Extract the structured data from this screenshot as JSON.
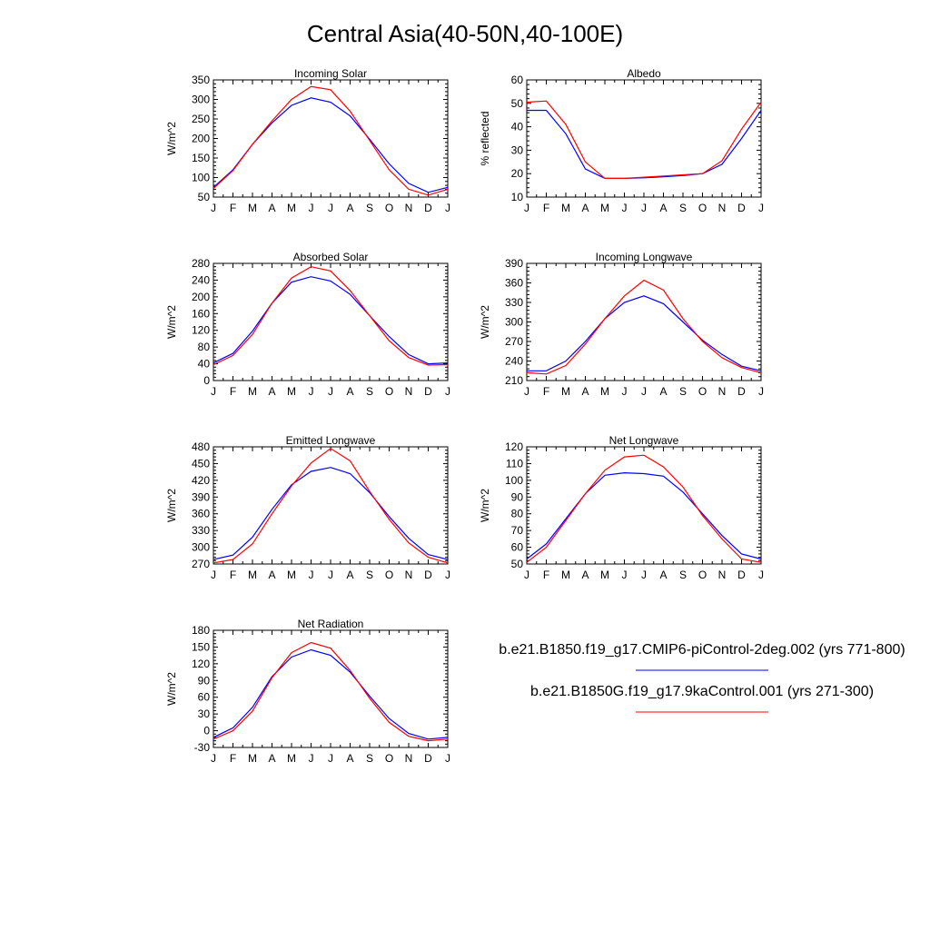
{
  "figure": {
    "title": "Central Asia(40-50N,40-100E)"
  },
  "legend": [
    {
      "label": "b.e21.B1850.f19_g17.CMIP6-piControl-2deg.002 (yrs 771-800)",
      "color": "#0000ff"
    },
    {
      "label": "b.e21.B1850G.f19_g17.9kaControl.001 (yrs 271-300)",
      "color": "#ff0000"
    }
  ],
  "chart_data": [
    {
      "type": "line",
      "title": "Incoming Solar",
      "xlabel": "",
      "ylabel": "W/m^2",
      "categories": [
        "J",
        "F",
        "M",
        "A",
        "M",
        "J",
        "J",
        "A",
        "S",
        "O",
        "N",
        "D",
        "J"
      ],
      "ylim": [
        50,
        350
      ],
      "yticks": [
        50,
        100,
        150,
        200,
        250,
        300,
        350
      ],
      "series": [
        {
          "color": "#0000ff",
          "values": [
            75,
            120,
            185,
            240,
            285,
            304,
            293,
            258,
            198,
            135,
            85,
            62,
            75
          ]
        },
        {
          "color": "#ff0000",
          "values": [
            72,
            118,
            185,
            245,
            300,
            333,
            325,
            270,
            195,
            120,
            70,
            55,
            70
          ]
        }
      ]
    },
    {
      "type": "line",
      "title": "Albedo",
      "xlabel": "",
      "ylabel": "% reflected",
      "categories": [
        "J",
        "F",
        "M",
        "A",
        "M",
        "J",
        "J",
        "A",
        "S",
        "O",
        "N",
        "D",
        "J"
      ],
      "ylim": [
        10,
        60
      ],
      "yticks": [
        10,
        20,
        30,
        40,
        50,
        60
      ],
      "series": [
        {
          "color": "#0000ff",
          "values": [
            47,
            47,
            37,
            22,
            18,
            18,
            18.2,
            18.7,
            19.2,
            20,
            24,
            35,
            47
          ]
        },
        {
          "color": "#ff0000",
          "values": [
            50.5,
            51,
            41,
            25,
            18,
            18,
            18.5,
            19,
            19.5,
            20,
            25.5,
            39,
            50.5
          ]
        }
      ]
    },
    {
      "type": "line",
      "title": "Absorbed Solar",
      "xlabel": "",
      "ylabel": "W/m^2",
      "categories": [
        "J",
        "F",
        "M",
        "A",
        "M",
        "J",
        "J",
        "A",
        "S",
        "O",
        "N",
        "D",
        "J"
      ],
      "ylim": [
        0,
        280
      ],
      "yticks": [
        0,
        40,
        80,
        120,
        160,
        200,
        240,
        280
      ],
      "series": [
        {
          "color": "#0000ff",
          "values": [
            42,
            65,
            118,
            185,
            235,
            248,
            238,
            206,
            155,
            105,
            62,
            40,
            42
          ]
        },
        {
          "color": "#ff0000",
          "values": [
            38,
            60,
            110,
            185,
            245,
            272,
            262,
            215,
            155,
            95,
            55,
            37,
            38
          ]
        }
      ]
    },
    {
      "type": "line",
      "title": "Incoming Longwave",
      "xlabel": "",
      "ylabel": "W/m^2",
      "categories": [
        "J",
        "F",
        "M",
        "A",
        "M",
        "J",
        "J",
        "A",
        "S",
        "O",
        "N",
        "D",
        "J"
      ],
      "ylim": [
        210,
        390
      ],
      "yticks": [
        210,
        240,
        270,
        300,
        330,
        360,
        390
      ],
      "series": [
        {
          "color": "#0000ff",
          "values": [
            225,
            225,
            240,
            270,
            305,
            330,
            340,
            328,
            300,
            272,
            250,
            232,
            225
          ]
        },
        {
          "color": "#ff0000",
          "values": [
            222,
            220,
            233,
            266,
            305,
            340,
            364,
            349,
            305,
            270,
            245,
            230,
            222
          ]
        }
      ]
    },
    {
      "type": "line",
      "title": "Emitted Longwave",
      "xlabel": "",
      "ylabel": "W/m^2",
      "categories": [
        "J",
        "F",
        "M",
        "A",
        "M",
        "J",
        "J",
        "A",
        "S",
        "O",
        "N",
        "D",
        "J"
      ],
      "ylim": [
        270,
        480
      ],
      "yticks": [
        270,
        300,
        330,
        360,
        390,
        420,
        450,
        480
      ],
      "series": [
        {
          "color": "#0000ff",
          "values": [
            278,
            286,
            318,
            368,
            412,
            436,
            443,
            432,
            398,
            355,
            316,
            287,
            278
          ]
        },
        {
          "color": "#ff0000",
          "values": [
            272,
            278,
            306,
            360,
            410,
            451,
            477,
            455,
            400,
            350,
            308,
            282,
            272
          ]
        }
      ]
    },
    {
      "type": "line",
      "title": "Net Longwave",
      "xlabel": "",
      "ylabel": "W/m^2",
      "categories": [
        "J",
        "F",
        "M",
        "A",
        "M",
        "J",
        "J",
        "A",
        "S",
        "O",
        "N",
        "D",
        "J"
      ],
      "ylim": [
        50,
        120
      ],
      "yticks": [
        50,
        60,
        70,
        80,
        90,
        100,
        110,
        120
      ],
      "series": [
        {
          "color": "#0000ff",
          "values": [
            53,
            62,
            77,
            92,
            103,
            104.5,
            104,
            102.5,
            93,
            80,
            67,
            56,
            53
          ]
        },
        {
          "color": "#ff0000",
          "values": [
            51,
            60,
            76,
            92,
            106,
            114,
            115,
            108,
            96,
            79,
            65,
            53,
            51
          ]
        }
      ]
    },
    {
      "type": "line",
      "title": "Net Radiation",
      "xlabel": "",
      "ylabel": "W/m^2",
      "categories": [
        "J",
        "F",
        "M",
        "A",
        "M",
        "J",
        "J",
        "A",
        "S",
        "O",
        "N",
        "D",
        "J"
      ],
      "ylim": [
        -30,
        180
      ],
      "yticks": [
        -30,
        0,
        30,
        60,
        90,
        120,
        150,
        180
      ],
      "series": [
        {
          "color": "#0000ff",
          "values": [
            -12,
            5,
            42,
            97,
            132,
            145,
            135,
            105,
            62,
            22,
            -5,
            -15,
            -12
          ]
        },
        {
          "color": "#ff0000",
          "values": [
            -15,
            0,
            35,
            95,
            140,
            158,
            148,
            108,
            58,
            15,
            -10,
            -18,
            -15
          ]
        }
      ]
    }
  ]
}
